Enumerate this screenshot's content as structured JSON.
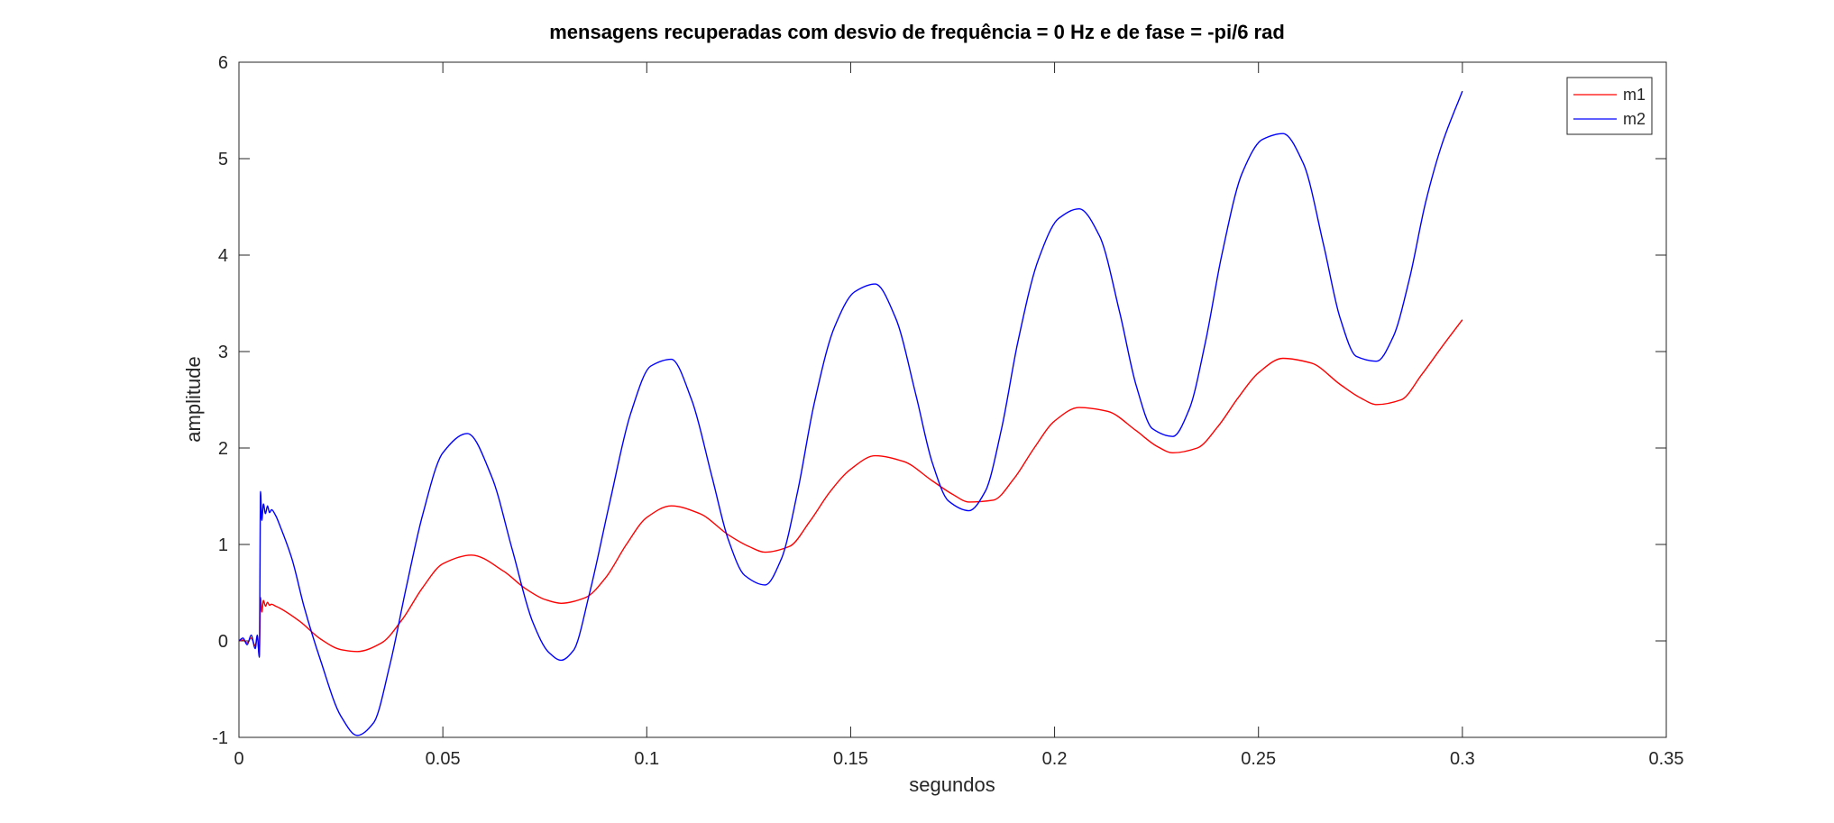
{
  "chart_data": {
    "type": "line",
    "title": "mensagens recuperadas com desvio de frequência = 0 Hz e de fase = -pi/6 rad",
    "xlabel": "segundos",
    "ylabel": "amplitude",
    "xlim": [
      0,
      0.35
    ],
    "ylim": [
      -1,
      6
    ],
    "xticks": [
      0,
      0.05,
      0.1,
      0.15,
      0.2,
      0.25,
      0.3,
      0.35
    ],
    "xtick_labels": [
      "0",
      "0.05",
      "0.1",
      "0.15",
      "0.2",
      "0.25",
      "0.3",
      "0.35"
    ],
    "yticks": [
      -1,
      0,
      1,
      2,
      3,
      4,
      5,
      6
    ],
    "ytick_labels": [
      "-1",
      "0",
      "1",
      "2",
      "3",
      "4",
      "5",
      "6"
    ],
    "grid": false,
    "legend_position": "top-right",
    "series": [
      {
        "name": "m1",
        "color": "#ff0000",
        "x": [
          0,
          0.001,
          0.002,
          0.003,
          0.004,
          0.0045,
          0.005,
          0.0053,
          0.0056,
          0.006,
          0.0065,
          0.007,
          0.0075,
          0.008,
          0.009,
          0.01,
          0.015,
          0.02,
          0.025,
          0.029,
          0.035,
          0.04,
          0.045,
          0.05,
          0.057,
          0.065,
          0.07,
          0.075,
          0.079,
          0.085,
          0.09,
          0.095,
          0.1,
          0.106,
          0.113,
          0.12,
          0.125,
          0.129,
          0.135,
          0.14,
          0.145,
          0.15,
          0.156,
          0.163,
          0.17,
          0.175,
          0.179,
          0.185,
          0.19,
          0.195,
          0.2,
          0.206,
          0.213,
          0.22,
          0.225,
          0.229,
          0.235,
          0.24,
          0.245,
          0.25,
          0.256,
          0.263,
          0.27,
          0.275,
          0.279,
          0.285,
          0.29,
          0.295,
          0.3
        ],
        "y": [
          0,
          0.01,
          -0.02,
          0.03,
          -0.05,
          0.05,
          -0.15,
          0.45,
          0.3,
          0.42,
          0.36,
          0.4,
          0.37,
          0.38,
          0.36,
          0.34,
          0.2,
          0.02,
          -0.09,
          -0.11,
          -0.02,
          0.22,
          0.55,
          0.8,
          0.89,
          0.72,
          0.55,
          0.43,
          0.39,
          0.45,
          0.66,
          1.0,
          1.28,
          1.4,
          1.32,
          1.1,
          0.98,
          0.92,
          0.98,
          1.24,
          1.55,
          1.78,
          1.92,
          1.86,
          1.66,
          1.52,
          1.44,
          1.46,
          1.68,
          2.0,
          2.28,
          2.42,
          2.38,
          2.18,
          2.02,
          1.95,
          2.0,
          2.22,
          2.52,
          2.78,
          2.93,
          2.88,
          2.66,
          2.52,
          2.45,
          2.5,
          2.76,
          3.05,
          3.33
        ]
      },
      {
        "name": "m2",
        "color": "#0000ff",
        "x": [
          0,
          0.001,
          0.002,
          0.003,
          0.004,
          0.0045,
          0.005,
          0.0053,
          0.0056,
          0.006,
          0.0065,
          0.007,
          0.0075,
          0.008,
          0.009,
          0.01,
          0.013,
          0.016,
          0.02,
          0.025,
          0.029,
          0.033,
          0.037,
          0.041,
          0.045,
          0.05,
          0.056,
          0.062,
          0.067,
          0.072,
          0.076,
          0.079,
          0.082,
          0.086,
          0.091,
          0.096,
          0.101,
          0.106,
          0.111,
          0.116,
          0.12,
          0.124,
          0.129,
          0.133,
          0.137,
          0.141,
          0.146,
          0.151,
          0.156,
          0.161,
          0.166,
          0.17,
          0.174,
          0.179,
          0.183,
          0.187,
          0.191,
          0.196,
          0.201,
          0.206,
          0.211,
          0.216,
          0.22,
          0.224,
          0.229,
          0.233,
          0.237,
          0.241,
          0.246,
          0.251,
          0.256,
          0.261,
          0.266,
          0.27,
          0.274,
          0.279,
          0.283,
          0.287,
          0.291,
          0.295,
          0.3
        ],
        "y": [
          0,
          0.03,
          -0.04,
          0.06,
          -0.08,
          0.06,
          -0.17,
          1.55,
          1.25,
          1.42,
          1.32,
          1.4,
          1.33,
          1.36,
          1.3,
          1.2,
          0.85,
          0.35,
          -0.2,
          -0.78,
          -0.98,
          -0.85,
          -0.25,
          0.55,
          1.3,
          1.95,
          2.15,
          1.7,
          0.95,
          0.2,
          -0.12,
          -0.2,
          -0.1,
          0.5,
          1.45,
          2.35,
          2.85,
          2.92,
          2.5,
          1.7,
          1.05,
          0.68,
          0.58,
          0.85,
          1.55,
          2.45,
          3.25,
          3.62,
          3.7,
          3.35,
          2.55,
          1.85,
          1.45,
          1.35,
          1.55,
          2.2,
          3.1,
          3.95,
          4.38,
          4.48,
          4.2,
          3.4,
          2.65,
          2.2,
          2.12,
          2.4,
          3.1,
          4.0,
          4.85,
          5.2,
          5.26,
          4.95,
          4.1,
          3.35,
          2.95,
          2.9,
          3.15,
          3.75,
          4.55,
          5.15,
          5.7
        ]
      }
    ]
  }
}
